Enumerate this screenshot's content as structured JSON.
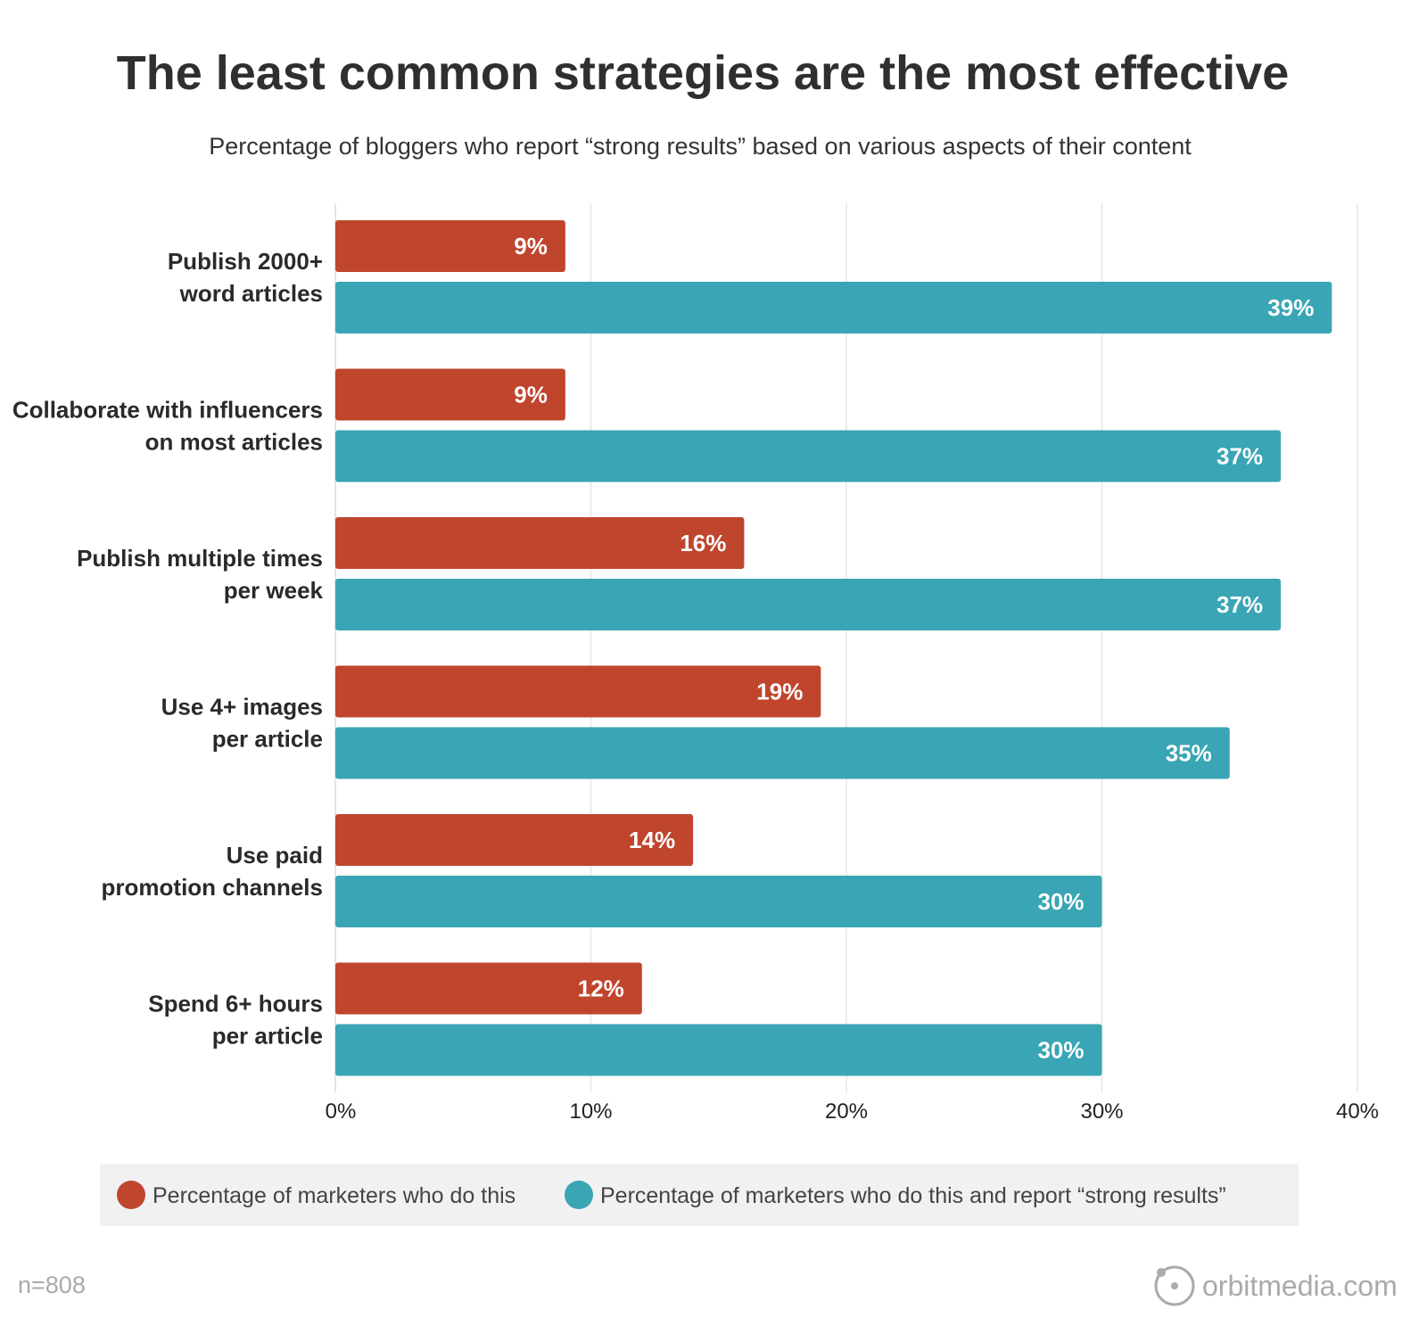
{
  "chart_data": {
    "type": "bar",
    "orientation": "horizontal",
    "title": "The least common strategies are the most effective",
    "subtitle": "Percentage of bloggers who report “strong results” based on various aspects of their content",
    "categories": [
      [
        "Publish 2000+",
        "word articles"
      ],
      [
        "Collaborate with influencers",
        "on most articles"
      ],
      [
        "Publish multiple times",
        "per week"
      ],
      [
        "Use 4+ images",
        "per article"
      ],
      [
        "Use paid",
        "promotion channels"
      ],
      [
        "Spend 6+ hours",
        "per article"
      ]
    ],
    "series": [
      {
        "name": "Percentage of marketers who do this",
        "color": "#c0452d",
        "values": [
          9,
          9,
          16,
          19,
          14,
          12
        ],
        "labels": [
          "9%",
          "9%",
          "16%",
          "19%",
          "14%",
          "12%"
        ]
      },
      {
        "name": "Percentage of marketers who do this and report “strong results”",
        "color": "#3aa5b4",
        "values": [
          39,
          37,
          37,
          35,
          30,
          30
        ],
        "labels": [
          "39%",
          "37%",
          "37%",
          "35%",
          "30%",
          "30%"
        ]
      }
    ],
    "xlim": [
      0,
      40
    ],
    "xticks": [
      0,
      10,
      20,
      30,
      40
    ],
    "xtick_labels": [
      "0%",
      "10%",
      "20%",
      "30%",
      "40%"
    ],
    "grid": true,
    "legend_placement": "bottom"
  },
  "footer": {
    "sample_size": "n=808",
    "logo_text": "orbitmedia.com"
  }
}
